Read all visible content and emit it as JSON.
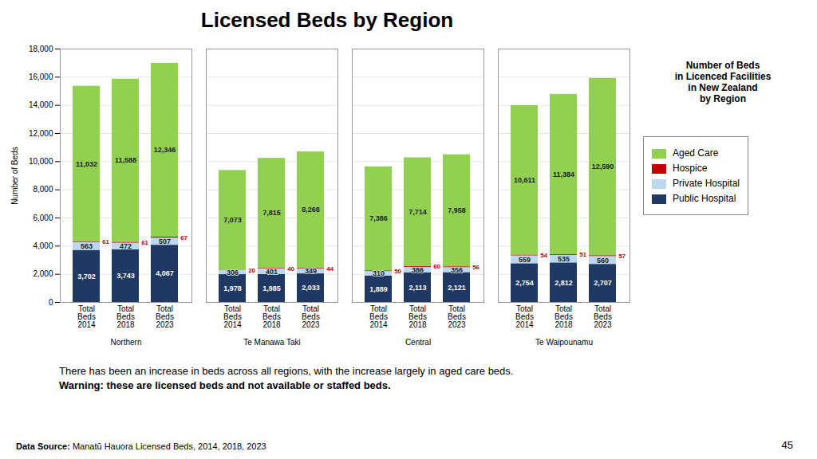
{
  "chart_data": {
    "type": "bar",
    "stacked": true,
    "data_labels": true,
    "grid": true,
    "legend": "right",
    "title": "Licensed Beds by Region",
    "subtitle": "Number of Beds\nin Licenced Facilities\nin New Zealand\nby Region",
    "ylabel": "Number of Beds",
    "ylim": [
      0,
      18000
    ],
    "yticks": [
      0,
      {
        "value": 2000,
        "label": "2,000"
      },
      {
        "value": 4000,
        "label": "4,000"
      },
      {
        "value": 6000,
        "label": "6,000"
      },
      {
        "value": 8000,
        "label": "8,000"
      },
      {
        "value": 10000,
        "label": "10,000"
      },
      {
        "value": 12000,
        "label": "12,000"
      },
      {
        "value": 14000,
        "label": "14,000"
      },
      {
        "value": 16000,
        "label": "16,000"
      },
      {
        "value": 18000,
        "label": "18,000"
      }
    ],
    "categories": [
      "Total\nBeds\n2014",
      "Total\nBeds\n2018",
      "Total\nBeds\n2023",
      "Total\nBeds\n2014",
      "Total\nBeds\n2018",
      "Total\nBeds\n2023",
      "Total\nBeds\n2014",
      "Total\nBeds\n2018",
      "Total\nBeds\n2023",
      "Total\nBeds\n2014",
      "Total\nBeds\n2018",
      "Total\nBeds\n2023"
    ],
    "groups": [
      "Northern",
      "Northern",
      "Northern",
      "Te Manawa Taki",
      "Te Manawa Taki",
      "Te Manawa Taki",
      "Central",
      "Central",
      "Central",
      "Te Waipounamu",
      "Te Waipounamu",
      "Te Waipounamu"
    ],
    "series": [
      {
        "name": "Public Hospital",
        "color": "#1F3864",
        "values": [
          3702,
          3743,
          4067,
          1978,
          1985,
          2033,
          1889,
          2113,
          2121,
          2754,
          2812,
          2707
        ],
        "value_labels": [
          "3,702",
          "3,743",
          "4,067",
          "1,978",
          "1,985",
          "2,033",
          "1,889",
          "2,113",
          "2,121",
          "2,754",
          "2,812",
          "2,707"
        ]
      },
      {
        "name": "Private Hospital",
        "color": "#BDD7EE",
        "values": [
          563,
          472,
          507,
          306,
          401,
          349,
          310,
          386,
          356,
          559,
          535,
          560
        ]
      },
      {
        "name": "Hospice",
        "color": "#C00000",
        "values": [
          61,
          61,
          67,
          20,
          40,
          44,
          50,
          60,
          56,
          54,
          51,
          57
        ]
      },
      {
        "name": "Aged Care",
        "color": "#92D050",
        "values": [
          11032,
          11588,
          12346,
          7073,
          7815,
          8268,
          7386,
          7714,
          7958,
          10611,
          11384,
          12590
        ],
        "value_labels": [
          "11,032",
          "11,588",
          "12,346",
          "7,073",
          "7,815",
          "8,268",
          "7,386",
          "7,714",
          "7,958",
          "10,611",
          "11,384",
          "12,590"
        ]
      }
    ],
    "annotations": [
      "There has been an increase in beds across all regions, with the increase largely in aged care beds.",
      "Warning: these are licensed beds and not available or staffed beds."
    ],
    "source": [
      "Data Source:",
      " Manatū Hauora Licensed Beds, 2014, 2018, 2023"
    ],
    "page": "45"
  }
}
